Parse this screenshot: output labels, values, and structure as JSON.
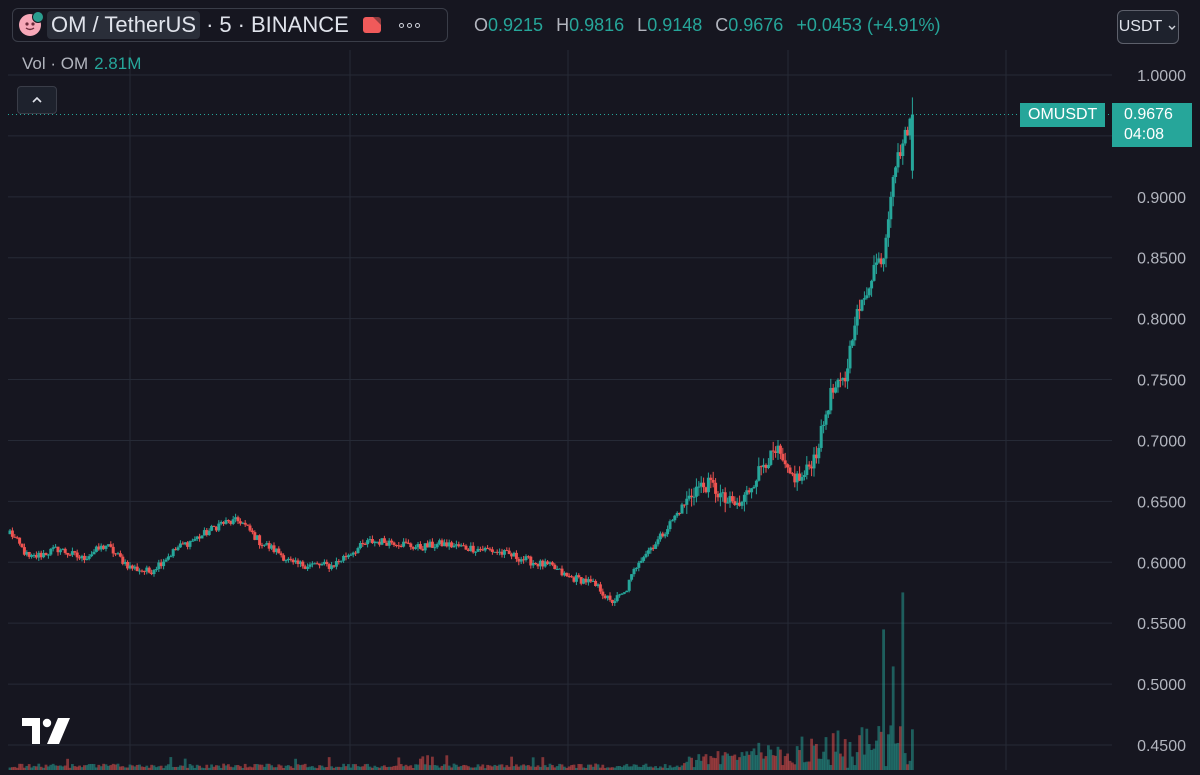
{
  "header": {
    "symbol": "OM / TetherUS",
    "interval": "5",
    "exchange": "BINANCE",
    "open_label": "O",
    "open": "0.9215",
    "high_label": "H",
    "high": "0.9816",
    "low_label": "L",
    "low": "0.9148",
    "close_label": "C",
    "close": "0.9676",
    "change": "+0.0453",
    "change_pct": "(+4.91%)"
  },
  "currency_selector": {
    "label": "USDT"
  },
  "volume_legend": {
    "label": "Vol · OM",
    "value": "2.81M"
  },
  "price_label": {
    "symbol": "OMUSDT",
    "price": "0.9676",
    "countdown": "04:08"
  },
  "colors": {
    "up": "#26a69a",
    "down": "#ef5350",
    "background": "#161620",
    "grid": "#262a36",
    "text": "#d1d4dc"
  },
  "icons": {
    "logo": "om-token-logo",
    "flag": "red-flag-icon",
    "more": "more-icon",
    "collapse": "chevron-up-icon",
    "dropdown": "chevron-down-icon",
    "brand": "tradingview-logo"
  },
  "chart_data": {
    "type": "candlestick",
    "title": "OM / TetherUS · 5 · BINANCE",
    "ylim": [
      0.44,
      1.01
    ],
    "y_ticks": [
      "1.0000",
      "0.9500",
      "0.9000",
      "0.8500",
      "0.8000",
      "0.7500",
      "0.7000",
      "0.6500",
      "0.6000",
      "0.5500",
      "0.5000",
      "0.4500"
    ],
    "grid": true,
    "anchors": [
      [
        0,
        0.625
      ],
      [
        8,
        0.603
      ],
      [
        20,
        0.611
      ],
      [
        30,
        0.603
      ],
      [
        40,
        0.614
      ],
      [
        50,
        0.596
      ],
      [
        58,
        0.592
      ],
      [
        70,
        0.612
      ],
      [
        80,
        0.622
      ],
      [
        88,
        0.632
      ],
      [
        96,
        0.634
      ],
      [
        104,
        0.617
      ],
      [
        112,
        0.608
      ],
      [
        118,
        0.598
      ],
      [
        126,
        0.598
      ],
      [
        134,
        0.597
      ],
      [
        142,
        0.608
      ],
      [
        150,
        0.617
      ],
      [
        160,
        0.617
      ],
      [
        170,
        0.612
      ],
      [
        180,
        0.615
      ],
      [
        190,
        0.612
      ],
      [
        200,
        0.61
      ],
      [
        210,
        0.605
      ],
      [
        218,
        0.6
      ],
      [
        226,
        0.596
      ],
      [
        232,
        0.588
      ],
      [
        240,
        0.585
      ],
      [
        246,
        0.578
      ],
      [
        250,
        0.567
      ],
      [
        256,
        0.574
      ],
      [
        262,
        0.602
      ],
      [
        270,
        0.618
      ],
      [
        278,
        0.64
      ],
      [
        286,
        0.661
      ],
      [
        292,
        0.664
      ],
      [
        298,
        0.65
      ],
      [
        304,
        0.646
      ],
      [
        308,
        0.66
      ],
      [
        314,
        0.682
      ],
      [
        320,
        0.69
      ],
      [
        324,
        0.672
      ],
      [
        330,
        0.668
      ],
      [
        336,
        0.69
      ],
      [
        342,
        0.738
      ],
      [
        348,
        0.75
      ],
      [
        352,
        0.8
      ],
      [
        356,
        0.815
      ],
      [
        360,
        0.843
      ],
      [
        364,
        0.852
      ],
      [
        368,
        0.921
      ],
      [
        372,
        0.944
      ],
      [
        376,
        0.9676
      ]
    ],
    "last_candle": {
      "open": 0.9215,
      "high": 0.9816,
      "low": 0.9148,
      "close": 0.9676
    },
    "volume_spikes": [
      {
        "index": 364,
        "value": 0.76
      },
      {
        "index": 368,
        "value": 0.56
      },
      {
        "index": 372,
        "value": 0.96
      },
      {
        "index": 376,
        "value": 0.22
      }
    ]
  }
}
